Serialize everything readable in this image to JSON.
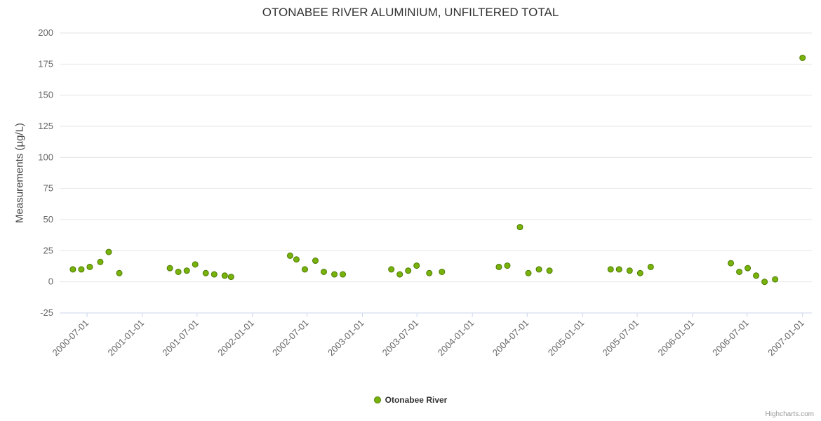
{
  "title": "OTONABEE RIVER ALUMINIUM, UNFILTERED TOTAL",
  "credits": "Highcharts.com",
  "legend": {
    "label": "Otonabee River",
    "marker_color": "#77b30a"
  },
  "colors": {
    "point_fill": "#77b30a",
    "point_stroke": "#4e7a06",
    "grid_line": "#e6e6e6",
    "axis_line": "#ccd6eb",
    "tick_label": "#666666",
    "title_text": "#333333"
  },
  "chart_data": {
    "type": "scatter",
    "title": "OTONABEE RIVER ALUMINIUM, UNFILTERED TOTAL",
    "xlabel": "",
    "ylabel": "Measurements (µg/L)",
    "ylim": [
      -25,
      200
    ],
    "y_ticks": [
      -25,
      0,
      25,
      50,
      75,
      100,
      125,
      150,
      175,
      200
    ],
    "x_ticks": [
      "2000-07-01",
      "2001-01-01",
      "2001-07-01",
      "2002-01-01",
      "2002-07-01",
      "2003-01-01",
      "2003-07-01",
      "2004-01-01",
      "2004-07-01",
      "2005-01-01",
      "2005-07-01",
      "2006-01-01",
      "2006-07-01",
      "2007-01-01"
    ],
    "x_range": [
      "2000-04-01",
      "2007-02-01"
    ],
    "grid": true,
    "legend_position": "bottom",
    "series": [
      {
        "name": "Otonabee River",
        "color": "#77b30a",
        "points": [
          [
            "2000-05-15",
            10
          ],
          [
            "2000-06-12",
            10
          ],
          [
            "2000-07-10",
            12
          ],
          [
            "2000-08-14",
            16
          ],
          [
            "2000-09-11",
            24
          ],
          [
            "2000-10-16",
            7
          ],
          [
            "2001-04-02",
            11
          ],
          [
            "2001-04-30",
            8
          ],
          [
            "2001-05-28",
            9
          ],
          [
            "2001-06-25",
            14
          ],
          [
            "2001-07-30",
            7
          ],
          [
            "2001-08-27",
            6
          ],
          [
            "2001-10-01",
            5
          ],
          [
            "2001-10-22",
            4
          ],
          [
            "2002-05-06",
            21
          ],
          [
            "2002-05-27",
            18
          ],
          [
            "2002-06-24",
            10
          ],
          [
            "2002-07-29",
            17
          ],
          [
            "2002-08-26",
            8
          ],
          [
            "2002-09-30",
            6
          ],
          [
            "2002-10-28",
            6
          ],
          [
            "2003-04-07",
            10
          ],
          [
            "2003-05-05",
            6
          ],
          [
            "2003-06-02",
            9
          ],
          [
            "2003-06-30",
            13
          ],
          [
            "2003-08-11",
            7
          ],
          [
            "2003-09-22",
            8
          ],
          [
            "2004-03-29",
            12
          ],
          [
            "2004-04-26",
            13
          ],
          [
            "2004-06-07",
            44
          ],
          [
            "2004-07-05",
            7
          ],
          [
            "2004-08-09",
            10
          ],
          [
            "2004-09-13",
            9
          ],
          [
            "2005-04-04",
            10
          ],
          [
            "2005-05-02",
            10
          ],
          [
            "2005-06-06",
            9
          ],
          [
            "2005-07-11",
            7
          ],
          [
            "2005-08-15",
            12
          ],
          [
            "2006-05-08",
            15
          ],
          [
            "2006-06-05",
            8
          ],
          [
            "2006-07-03",
            11
          ],
          [
            "2006-07-31",
            5
          ],
          [
            "2006-08-28",
            0
          ],
          [
            "2006-10-02",
            2
          ],
          [
            "2007-01-01",
            180
          ]
        ]
      }
    ]
  }
}
